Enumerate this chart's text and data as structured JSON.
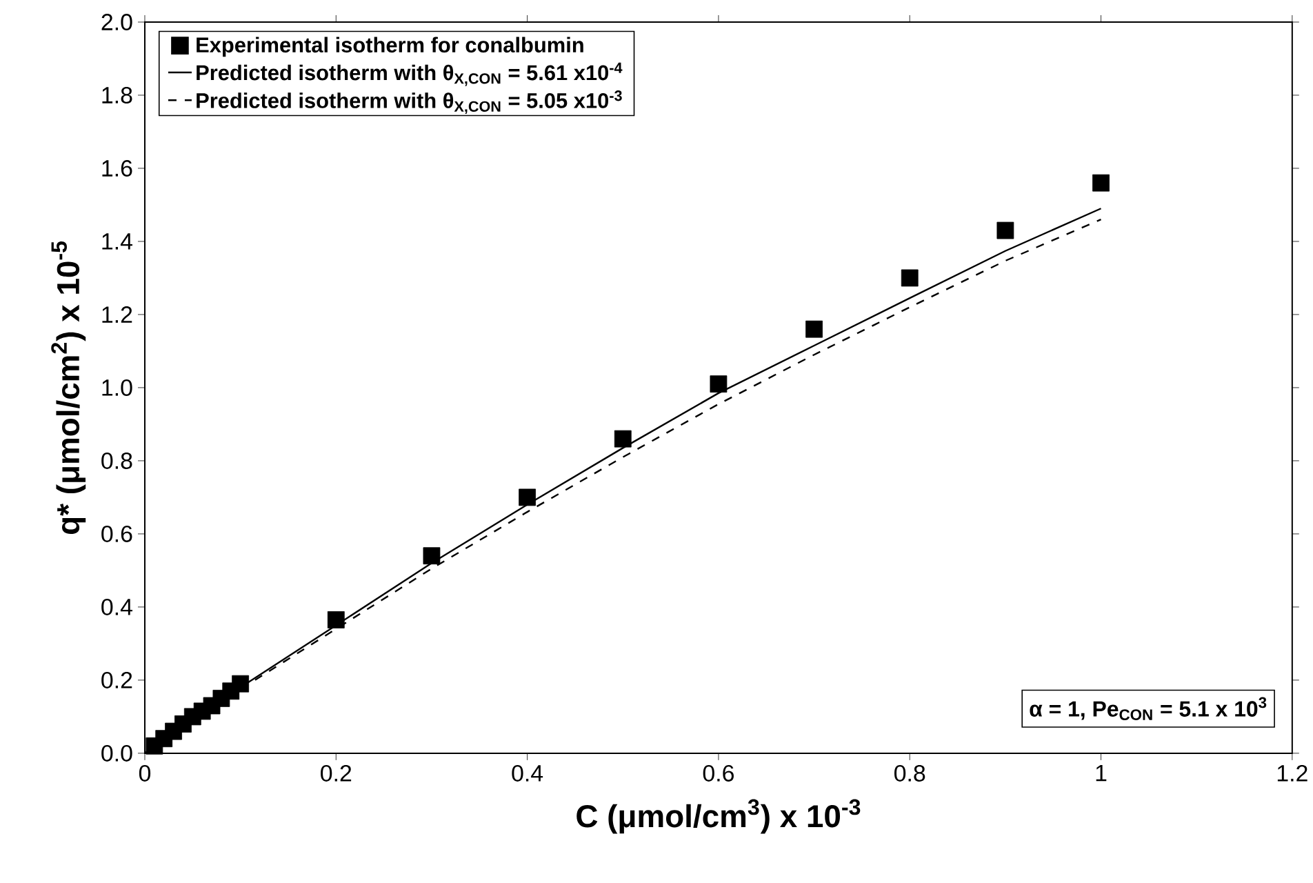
{
  "chart_data": {
    "type": "scatter",
    "xlabel": "C (μmol/cm$^{3}$) x 10$^{-3}$",
    "ylabel": "q* (μmol/cm$^{2}$) x 10$^{-5}$",
    "xlim": [
      0,
      1.2
    ],
    "ylim": [
      0,
      2.0
    ],
    "xticks": [
      0,
      0.2,
      0.4,
      0.6,
      0.8,
      1,
      1.2
    ],
    "yticks": [
      {
        "value": 0,
        "label": "0.0"
      },
      0.2,
      0.4,
      0.6,
      0.8,
      {
        "value": 1,
        "label": "1.0"
      },
      1.2,
      1.4,
      1.6,
      1.8,
      {
        "value": 2,
        "label": "2.0"
      }
    ],
    "grid": false,
    "legend": "top left",
    "annotations": [
      "α = 1, Pe$_{CON}$ = 5.1 x 10$^{3}$"
    ],
    "series": [
      {
        "name": "Experimental isotherm for conalbumin",
        "marker": "square",
        "color": "#000000",
        "x": [
          0.01,
          0.02,
          0.03,
          0.04,
          0.05,
          0.06,
          0.07,
          0.08,
          0.09,
          0.1,
          0.2,
          0.3,
          0.4,
          0.5,
          0.6,
          0.7,
          0.8,
          0.9,
          1.0
        ],
        "values": [
          0.02,
          0.04,
          0.06,
          0.08,
          0.1,
          0.115,
          0.13,
          0.15,
          0.17,
          0.19,
          0.365,
          0.54,
          0.7,
          0.86,
          1.01,
          1.16,
          1.3,
          1.43,
          1.56
        ]
      },
      {
        "name": "Predicted isotherm with θ$_{X,CON}$ = 5.61 x10$^{-4}$",
        "type": "line",
        "marker": "none",
        "line_style": "solid",
        "color": "#000000",
        "x": [
          0,
          0.1,
          0.2,
          0.3,
          0.4,
          0.5,
          0.6,
          0.7,
          0.8,
          0.9,
          1.0
        ],
        "values": [
          0,
          0.18,
          0.35,
          0.52,
          0.68,
          0.835,
          0.985,
          1.115,
          1.245,
          1.374,
          1.49
        ]
      },
      {
        "name": "Predicted isotherm with θ$_{X,CON}$ = 5.05 x10$^{-3}$",
        "type": "line",
        "marker": "none",
        "line_style": "dashed",
        "color": "#000000",
        "x": [
          0,
          0.1,
          0.2,
          0.3,
          0.4,
          0.5,
          0.6,
          0.7,
          0.8,
          0.9,
          1.0
        ],
        "values": [
          0,
          0.175,
          0.34,
          0.505,
          0.66,
          0.81,
          0.955,
          1.09,
          1.22,
          1.347,
          1.46
        ]
      }
    ]
  }
}
